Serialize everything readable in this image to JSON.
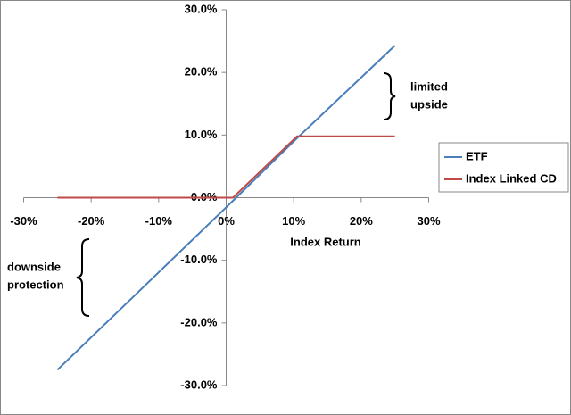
{
  "chart_data": {
    "type": "line",
    "x_label": "Index Return",
    "x": [
      -25,
      1,
      10.5,
      25
    ],
    "series": [
      {
        "name": "ETF",
        "color": "#4a7ebb",
        "values": [
          -27.5,
          -0.5,
          9.5,
          24.3
        ]
      },
      {
        "name": "Index Linked CD",
        "color": "#be4b48",
        "values": [
          0,
          0,
          9.8,
          9.8
        ]
      }
    ],
    "xlim": [
      -30,
      30
    ],
    "xticks": [
      {
        "value": -30,
        "label": "-30%"
      },
      {
        "value": -20,
        "label": "-20%"
      },
      {
        "value": -10,
        "label": "-10%"
      },
      {
        "value": 0,
        "label": "0%"
      },
      {
        "value": 10,
        "label": "10%"
      },
      {
        "value": 20,
        "label": "20%"
      },
      {
        "value": 30,
        "label": "30%"
      }
    ],
    "ylim": [
      -30,
      30
    ],
    "yticks": [
      {
        "value": -30,
        "label": "-30.0%"
      },
      {
        "value": -20,
        "label": "-20.0%"
      },
      {
        "value": -10,
        "label": "-10.0%"
      },
      {
        "value": 0,
        "label": "0.0%"
      },
      {
        "value": 10,
        "label": "10.0%"
      },
      {
        "value": 20,
        "label": "20.0%"
      },
      {
        "value": 30,
        "label": "30.0%"
      }
    ],
    "legend": "right",
    "annotations": [
      {
        "lines": [
          "limited",
          "upside"
        ]
      },
      {
        "lines": [
          "downside",
          "protection"
        ]
      }
    ]
  }
}
